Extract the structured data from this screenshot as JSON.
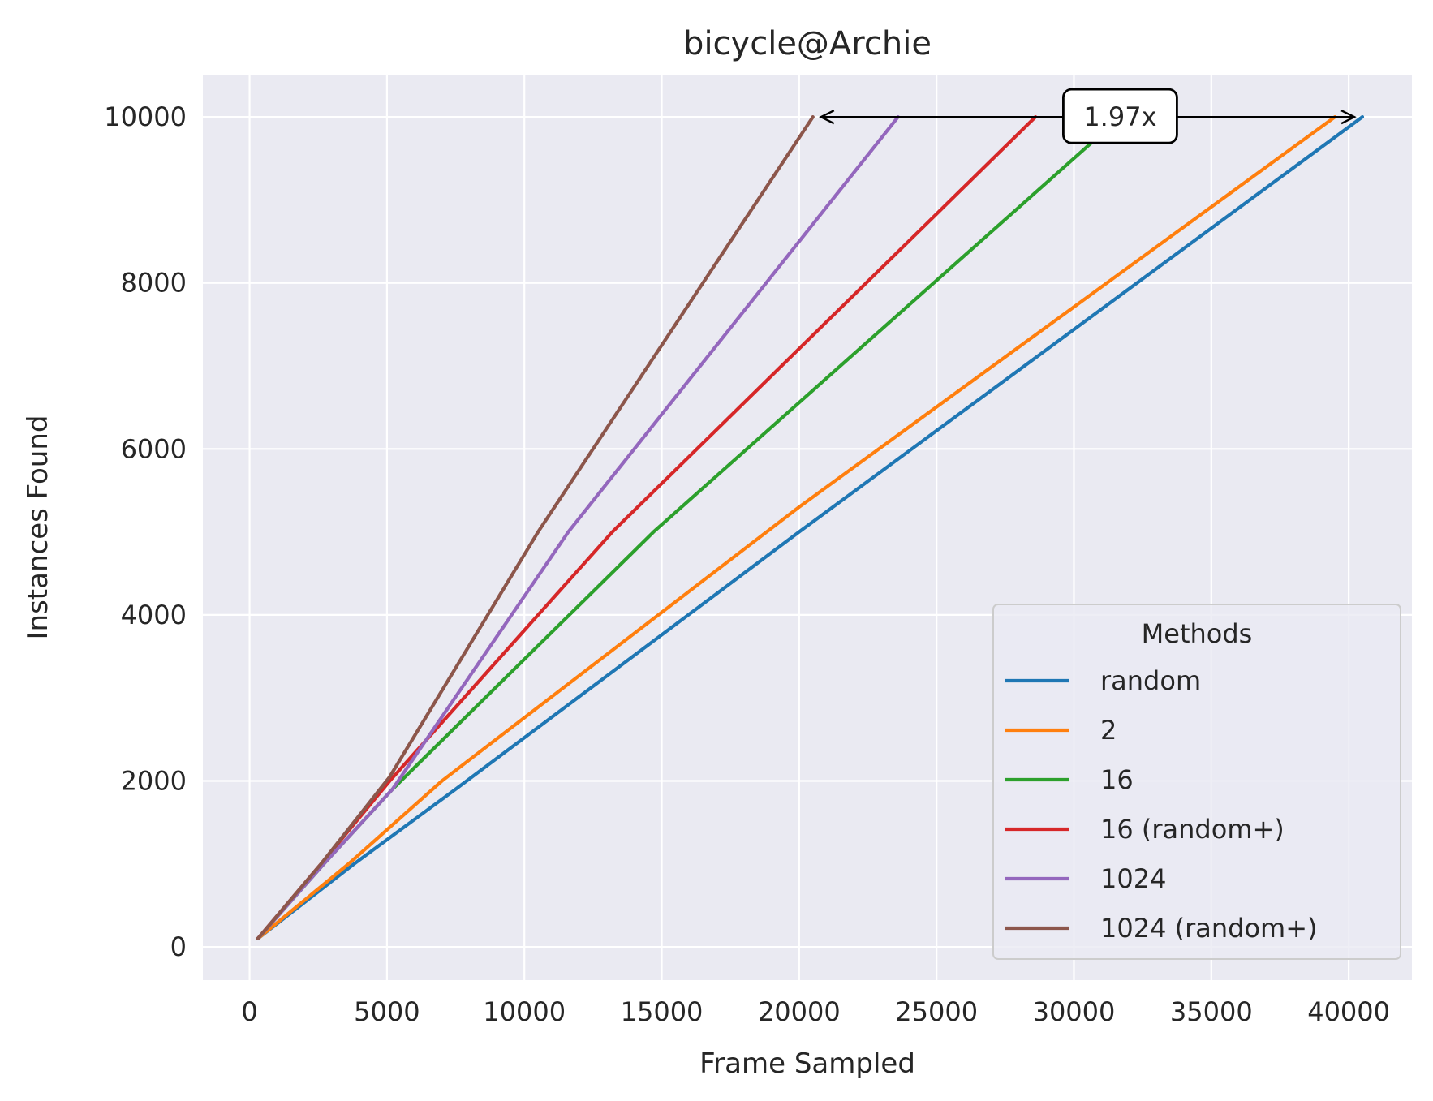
{
  "chart_data": {
    "type": "line",
    "title": "bicycle@Archie",
    "xlabel": "Frame Sampled",
    "ylabel": "Instances Found",
    "xlim": [
      -1700,
      42300
    ],
    "ylim": [
      -400,
      10500
    ],
    "xticks": [
      0,
      5000,
      10000,
      15000,
      20000,
      25000,
      30000,
      35000,
      40000
    ],
    "yticks": [
      0,
      2000,
      4000,
      6000,
      8000,
      10000
    ],
    "grid": true,
    "legend": {
      "title": "Methods",
      "position": "lower-right"
    },
    "series": [
      {
        "name": "random",
        "color": "#1f77b4",
        "x": [
          300,
          3800,
          7500,
          20000,
          40500
        ],
        "y": [
          100,
          1000,
          1900,
          5000,
          10000
        ]
      },
      {
        "name": "2",
        "color": "#ff7f0e",
        "x": [
          300,
          3600,
          7000,
          20000,
          39500
        ],
        "y": [
          100,
          1000,
          2000,
          5300,
          10000
        ]
      },
      {
        "name": "16",
        "color": "#2ca02c",
        "x": [
          300,
          2700,
          5200,
          14700,
          31700
        ],
        "y": [
          100,
          1000,
          1900,
          5000,
          10000
        ]
      },
      {
        "name": "16 (random+)",
        "color": "#d62728",
        "x": [
          300,
          2600,
          5100,
          13200,
          28600
        ],
        "y": [
          100,
          1000,
          2000,
          5000,
          10000
        ]
      },
      {
        "name": "1024",
        "color": "#9467bd",
        "x": [
          300,
          2700,
          5200,
          11600,
          23600
        ],
        "y": [
          100,
          1000,
          1900,
          5000,
          10000
        ]
      },
      {
        "name": "1024 (random+)",
        "color": "#8c564b",
        "x": [
          300,
          2600,
          5100,
          10500,
          20500
        ],
        "y": [
          100,
          1000,
          2050,
          5000,
          10000
        ]
      }
    ],
    "annotation": {
      "text": "1.97x",
      "x_start": 20500,
      "x_end": 40500,
      "y": 10000
    }
  }
}
